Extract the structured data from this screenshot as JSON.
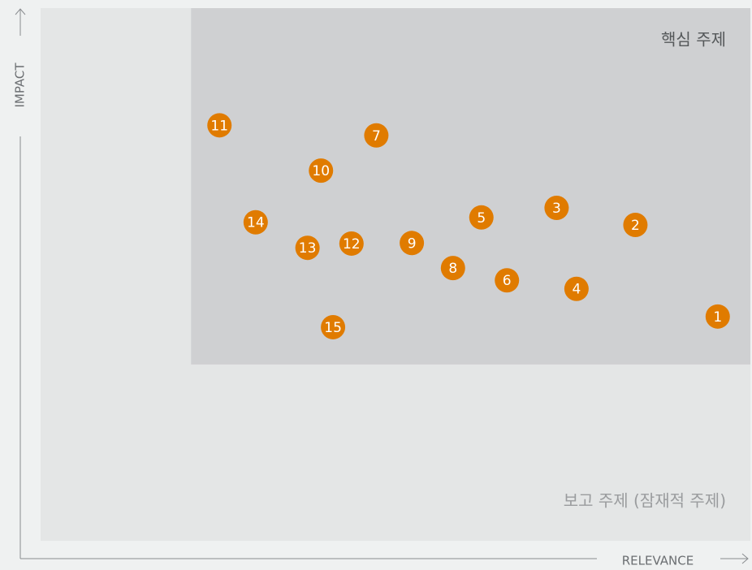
{
  "chart_data": {
    "type": "scatter",
    "xlabel": "RELEVANCE",
    "ylabel": "IMPACT",
    "xlim": [
      0,
      100
    ],
    "ylim": [
      0,
      100
    ],
    "regions": [
      {
        "label": "보고 주제 (잠재적 주제)",
        "xlim": [
          0,
          100
        ],
        "ylim": [
          0,
          100
        ],
        "color": "#e4e6e6",
        "text_color": "#9a9c9e"
      },
      {
        "label": "핵심 주제",
        "xlim": [
          21.2,
          100
        ],
        "ylim": [
          33.1,
          100
        ],
        "color": "#cfd0d2",
        "text_color": "#55585a"
      }
    ],
    "color": "#e07b00",
    "labels": [
      "1",
      "2",
      "3",
      "4",
      "5",
      "6",
      "7",
      "8",
      "9",
      "10",
      "11",
      "12",
      "13",
      "14",
      "15"
    ],
    "x": [
      95.4,
      83.8,
      72.7,
      75.5,
      62.1,
      65.7,
      47.3,
      58.1,
      52.3,
      39.5,
      25.2,
      43.8,
      37.6,
      30.3,
      41.2
    ],
    "values": [
      42.1,
      59.3,
      62.5,
      47.3,
      60.7,
      48.9,
      76.1,
      51.2,
      55.9,
      69.5,
      78.0,
      55.8,
      55.0,
      59.8,
      40.1
    ]
  }
}
